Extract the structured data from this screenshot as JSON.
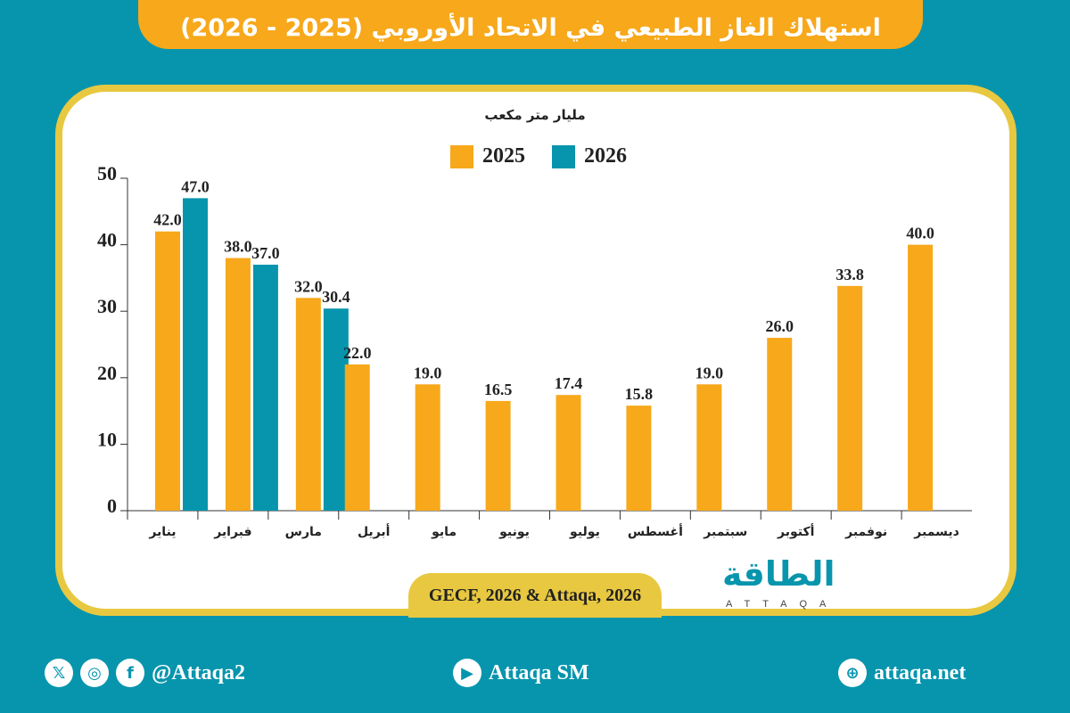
{
  "title": "استهلاك الغاز الطبيعي في الاتحاد الأوروبي (2025 - 2026)",
  "colors": {
    "background": "#0795ad",
    "accent": "#f7a81b",
    "border": "#e8c840",
    "series_2025": "#f7a81b",
    "series_2026": "#0795ad"
  },
  "chart_data": {
    "type": "bar",
    "title": "",
    "ylabel": "مليار متر مكعب",
    "xlabel": "",
    "ylim": [
      0,
      50
    ],
    "yticks": [
      0,
      10,
      20,
      30,
      40,
      50
    ],
    "legend_placement": "top-center",
    "categories": [
      "يناير",
      "فبراير",
      "مارس",
      "أبريل",
      "مايو",
      "يونيو",
      "يوليو",
      "أغسطس",
      "سبتمبر",
      "أكتوبر",
      "نوفمبر",
      "ديسمبر"
    ],
    "series": [
      {
        "name": "2025",
        "color": "#f7a81b",
        "values": [
          42.0,
          38.0,
          32.0,
          22.0,
          19.0,
          16.5,
          17.4,
          15.8,
          19.0,
          26.0,
          33.8,
          40.0
        ],
        "labels": [
          "42.0",
          "38.0",
          "32.0",
          "22.0",
          "19.0",
          "16.5",
          "17.4",
          "15.8",
          "19.0",
          "26.0",
          "33.8",
          "40.0"
        ]
      },
      {
        "name": "2026",
        "color": "#0795ad",
        "values": [
          47.0,
          37.0,
          30.4,
          null,
          null,
          null,
          null,
          null,
          null,
          null,
          null,
          null
        ],
        "labels": [
          "47.0",
          "37.0",
          "30.4",
          null,
          null,
          null,
          null,
          null,
          null,
          null,
          null,
          null
        ]
      }
    ]
  },
  "source": "GECF, 2026 & Attaqa, 2026",
  "logo": {
    "arabic": "الطاقة",
    "latin": "ATTAQA"
  },
  "footer": {
    "social_handle": "@Attaqa2",
    "social_icons": [
      "x-icon",
      "instagram-icon",
      "facebook-icon"
    ],
    "youtube": "Attaqa SM",
    "website": "attaqa.net"
  }
}
